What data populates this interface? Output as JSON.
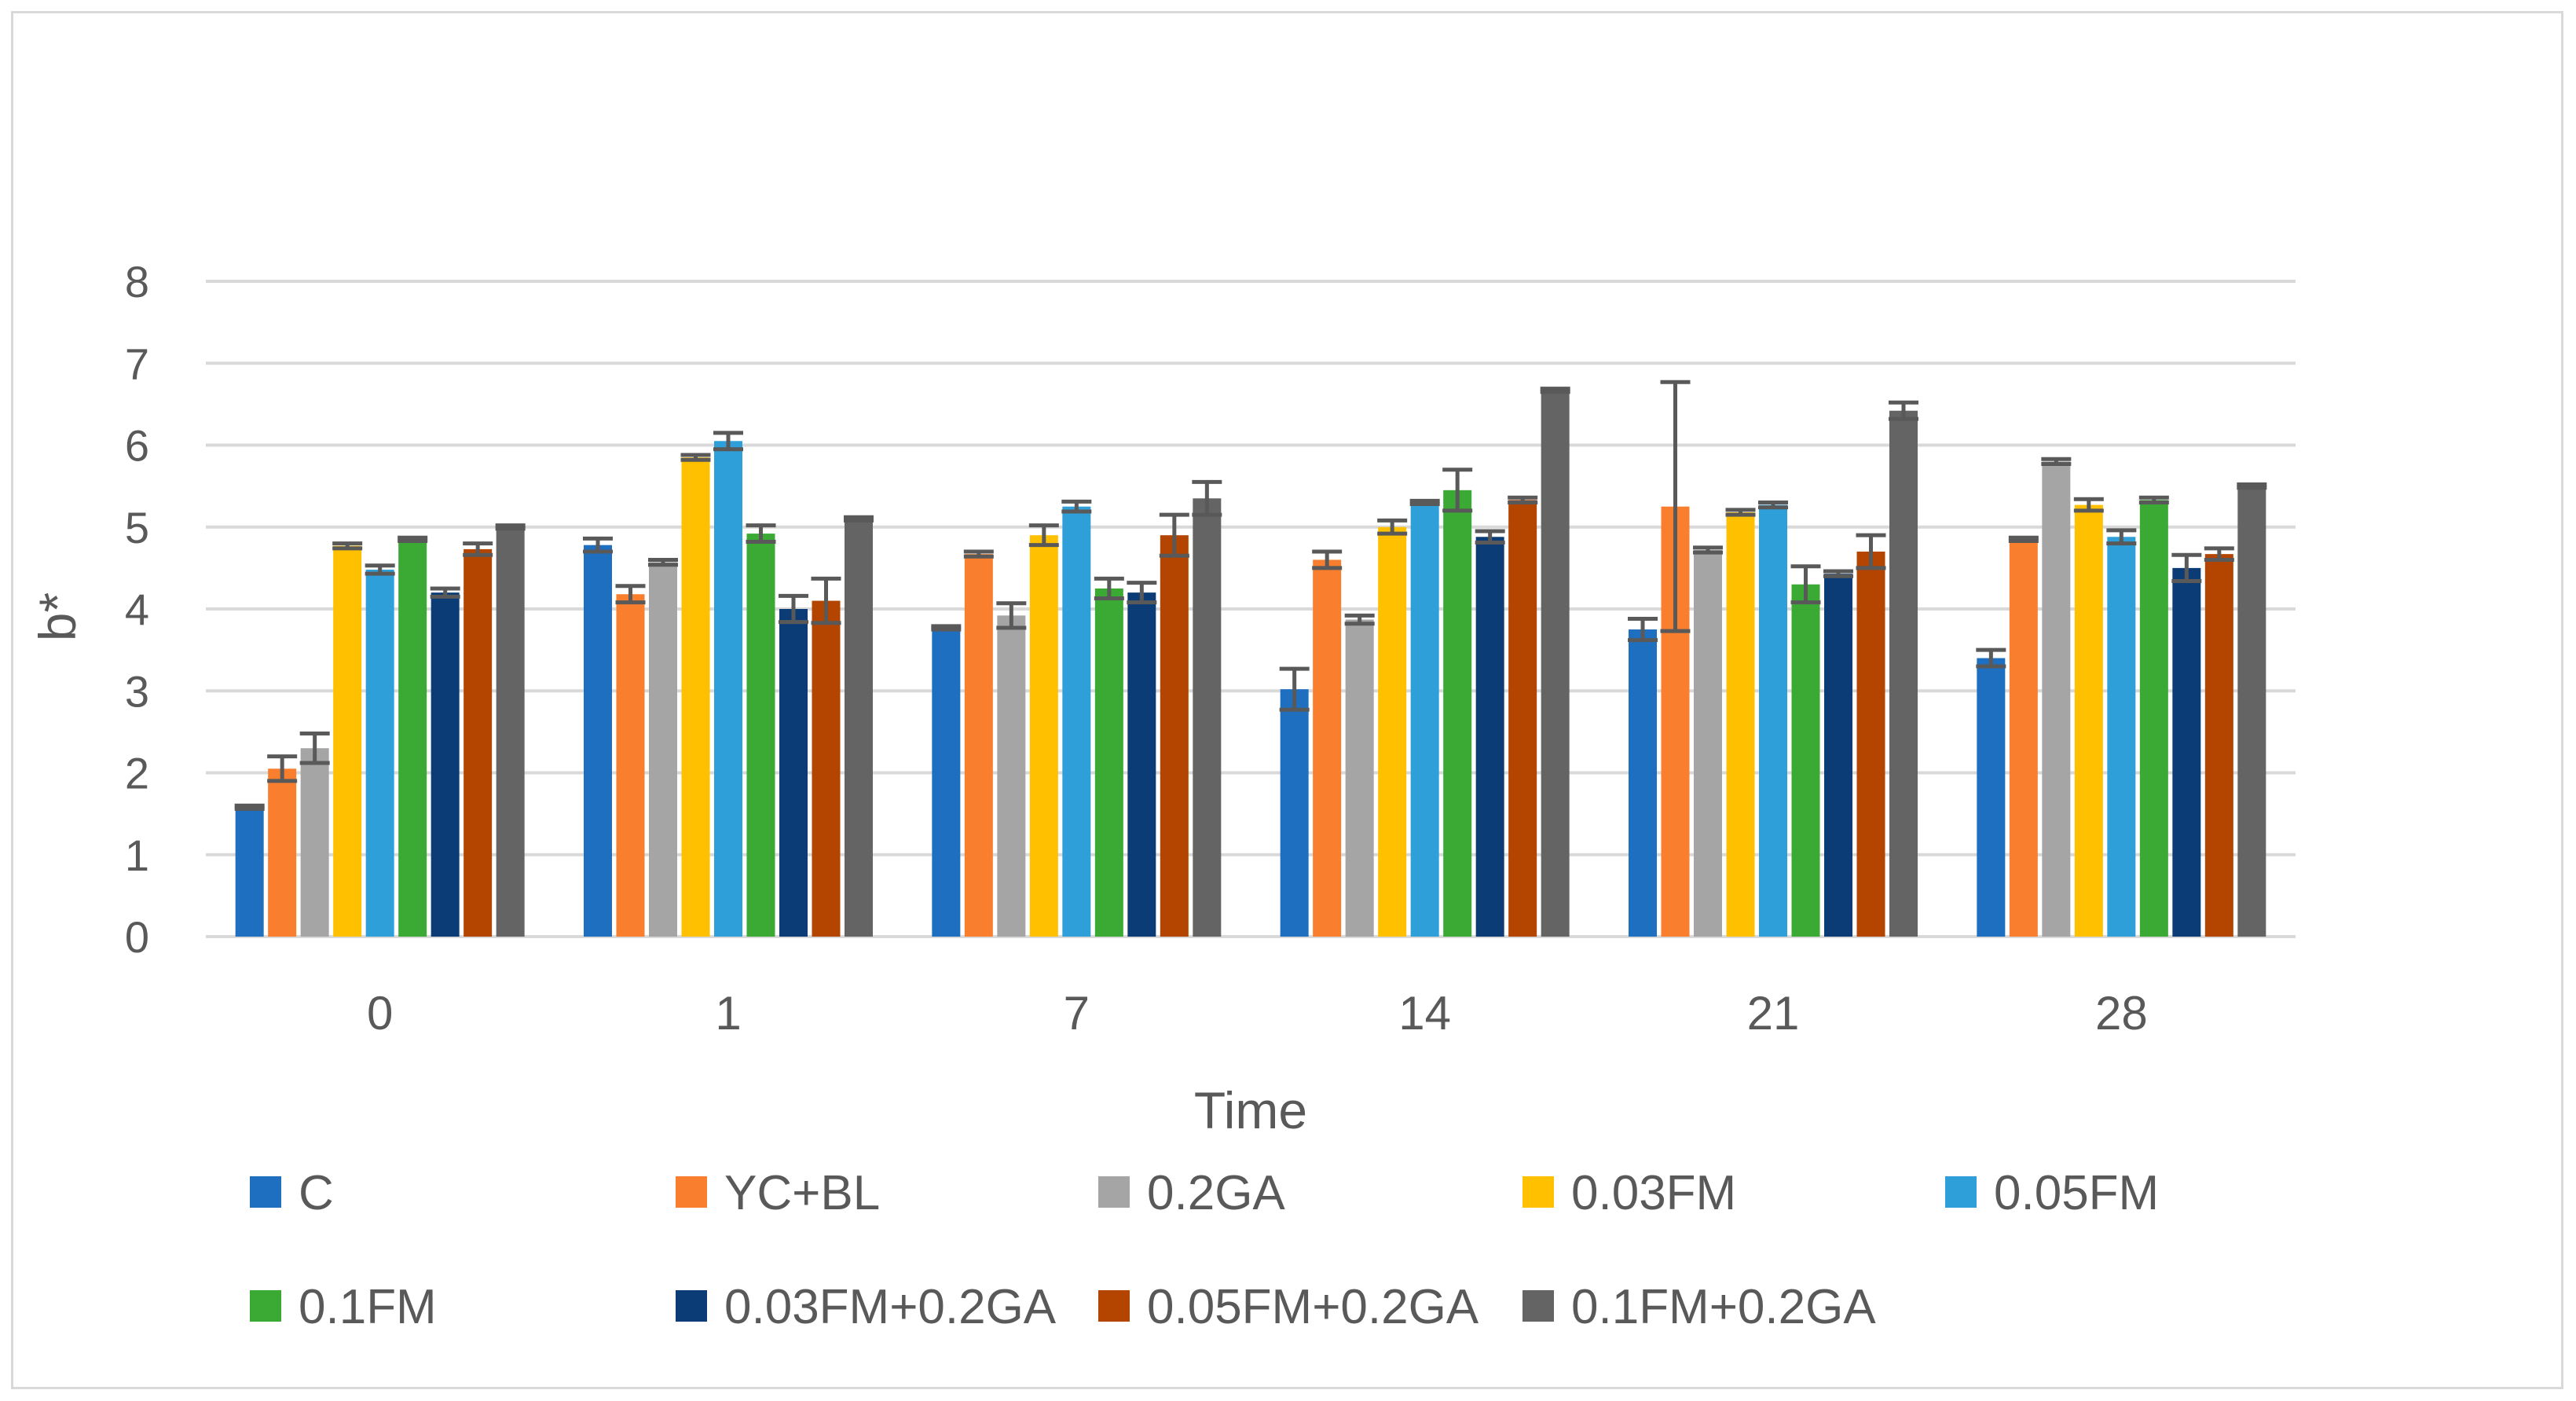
{
  "chart_data": {
    "type": "bar",
    "title": "",
    "xlabel": "Time",
    "ylabel": "b*",
    "ylim": [
      0,
      8
    ],
    "yticks": [
      0,
      1,
      2,
      3,
      4,
      5,
      6,
      7,
      8
    ],
    "categories": [
      "0",
      "1",
      "7",
      "14",
      "21",
      "28"
    ],
    "grid": true,
    "legend_position": "bottom",
    "series": [
      {
        "name": "C",
        "color": "#1f6fc0",
        "values": [
          1.58,
          4.78,
          3.77,
          3.02,
          3.75,
          3.4
        ],
        "errors": [
          0.02,
          0.08,
          0.02,
          0.25,
          0.13,
          0.1
        ]
      },
      {
        "name": "YC+BL",
        "color": "#f97e2d",
        "values": [
          2.05,
          4.18,
          4.67,
          4.6,
          5.25,
          4.85
        ],
        "errors": [
          0.15,
          0.1,
          0.03,
          0.1,
          1.52,
          0.02
        ]
      },
      {
        "name": "0.2GA",
        "color": "#a5a5a5",
        "values": [
          2.3,
          4.57,
          3.92,
          3.87,
          4.72,
          5.8
        ],
        "errors": [
          0.18,
          0.03,
          0.15,
          0.05,
          0.03,
          0.03
        ]
      },
      {
        "name": "0.03FM",
        "color": "#ffc000",
        "values": [
          4.77,
          5.85,
          4.9,
          5.0,
          5.18,
          5.27
        ],
        "errors": [
          0.03,
          0.03,
          0.12,
          0.08,
          0.03,
          0.07
        ]
      },
      {
        "name": "0.05FM",
        "color": "#2e9fd9",
        "values": [
          4.48,
          6.05,
          5.25,
          5.3,
          5.27,
          4.88
        ],
        "errors": [
          0.05,
          0.1,
          0.06,
          0.02,
          0.03,
          0.08
        ]
      },
      {
        "name": "0.1FM",
        "color": "#3aaa35",
        "values": [
          4.85,
          4.92,
          4.25,
          5.45,
          4.3,
          5.33
        ],
        "errors": [
          0.02,
          0.1,
          0.12,
          0.25,
          0.22,
          0.03
        ]
      },
      {
        "name": "0.03FM+0.2GA",
        "color": "#0c3c75",
        "values": [
          4.2,
          4.0,
          4.2,
          4.88,
          4.43,
          4.5
        ],
        "errors": [
          0.05,
          0.16,
          0.12,
          0.07,
          0.03,
          0.16
        ]
      },
      {
        "name": "0.05FM+0.2GA",
        "color": "#b34500",
        "values": [
          4.73,
          4.1,
          4.9,
          5.33,
          4.7,
          4.67
        ],
        "errors": [
          0.07,
          0.27,
          0.25,
          0.03,
          0.2,
          0.07
        ]
      },
      {
        "name": "0.1FM+0.2GA",
        "color": "#646464",
        "values": [
          5.0,
          5.1,
          5.35,
          6.67,
          6.42,
          5.5
        ],
        "errors": [
          0.02,
          0.02,
          0.2,
          0.02,
          0.1,
          0.02
        ]
      }
    ]
  }
}
